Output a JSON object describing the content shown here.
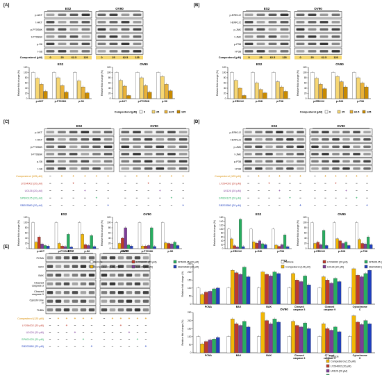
{
  "colors": {
    "vehicle": "#ffffff",
    "compound": "#f2b705",
    "ly": "#c0392b",
    "u0": "#7d3c98",
    "sp": "#27ae60",
    "sb": "#1f3fbf",
    "gray": "#888888",
    "ctrl_lbl": "#d98c00"
  },
  "panelA": {
    "letter": "[A]",
    "cells": [
      "ES2",
      "OV90"
    ],
    "bands": [
      "p-AKT",
      "t-AKT",
      "p-P70S6K",
      "t-P70S6K",
      "p-S6",
      "t-S6"
    ],
    "axis_caption": "Compesterol (μM)",
    "doses": [
      "0",
      "25",
      "62.5",
      "125"
    ],
    "ylabel": "Relative fold change (%)",
    "chart_titles": [
      "ES2",
      "OV90"
    ],
    "groups": [
      "p-AKT",
      "p-P70S6K",
      "p-S6"
    ],
    "dose_legend_caption": "Compesterol (μM)"
  },
  "panelB": {
    "letter": "[B]",
    "cells": [
      "ES2",
      "OV90"
    ],
    "bands": [
      "p-ERK1/2",
      "t-ERK1/2",
      "p-JNK",
      "t-JNK",
      "p-P38",
      "t-P38"
    ],
    "axis_caption": "Compesterol (μM)",
    "doses": [
      "0",
      "25",
      "62.5",
      "125"
    ],
    "ylabel": "Relative fold change (%)",
    "chart_titles": [
      "ES2",
      "OV90"
    ],
    "groups": [
      "p-ERK1/2",
      "p-JNK",
      "p-P38"
    ],
    "dose_legend_caption": "Compesterol (μM)"
  },
  "panelC": {
    "letter": "[C]",
    "cells": [
      "ES2",
      "OV90"
    ],
    "bands": [
      "p-AKT",
      "t-AKT",
      "p-P70S6K",
      "t-P70S6K",
      "p-S6",
      "t-S6"
    ],
    "treatments": [
      "Compesterol (125 μM)",
      "LY294002 (20 μM)",
      "U0126 (20 μM)",
      "SP600125 (20 μM)",
      "SB203580 (20 μM)"
    ],
    "ylabel": "Relative fold change (%)",
    "chart_titles": [
      "ES2",
      "OV90"
    ],
    "groups": [
      "p-AKT",
      "p-P70S6K",
      "p-S6"
    ],
    "legend": [
      "Vehicle",
      "LY294002 (20 μM)",
      "SP600125 (20 μM)",
      "Compesterol (125 μM)",
      "U0126 (20 μM)",
      "SB203580 (20 μM)"
    ]
  },
  "panelD": {
    "letter": "[D]",
    "cells": [
      "ES2",
      "OV90"
    ],
    "bands": [
      "p-ERK1/2",
      "t-ERK1/2",
      "p-JNK",
      "t-JNK",
      "p-P38",
      "t-P38"
    ],
    "treatments": [
      "Compesterol (125 μM)",
      "LY294002 (20 μM)",
      "U0126 (20 μM)",
      "SP600125 (20 μM)",
      "SB203580 (20 μM)"
    ],
    "ylabel": "Relative fold change (%)",
    "chart_titles": [
      "ES2",
      "OV90"
    ],
    "groups": [
      "p-ERK1/2",
      "p-JNK",
      "p-P38"
    ],
    "legend": [
      "Vehicle",
      "LY294002 (20 μM)",
      "SP600125 (20 μM)",
      "Compesterol (125 μM)",
      "U0126 (20 μM)",
      "SB203580 (20 μM)"
    ]
  },
  "panelE": {
    "letter": "[E]",
    "cells": [
      "ES2",
      "OV90"
    ],
    "bands": [
      "PCNA",
      "BAX",
      "BAK",
      "Cleaved caspase 3",
      "Cleaved caspase 9",
      "Cytochrome C",
      "TUBA"
    ],
    "treatments": [
      "Compesterol (125 μM)",
      "LY294002 (20 μM)",
      "U0126 (20 μM)",
      "SP600125 (20 μM)",
      "SB203580 (20 μM)"
    ],
    "ylabel": "Relative fold change (%)",
    "chart_titles": [
      "ES2",
      "OV90"
    ],
    "groups": [
      "PCNA",
      "BAX",
      "BAK",
      "Cleaved caspase 3",
      "Cleaved caspase 9",
      "Cytochrome C"
    ],
    "legend": [
      "Vehicle",
      "Compesterol (125 μM)",
      "LY294002 (20 μM)",
      "U0126 (20 μM)",
      "SP600125 (20 μM)",
      "SB203580 (20 μM)"
    ]
  },
  "symbols": {
    "plus": "+",
    "minus": "−"
  },
  "chart_data": [
    {
      "type": "bar",
      "title": "ES2",
      "ylabel": "Relative fold change (%)",
      "ylim": [
        0,
        120
      ],
      "yticks": [
        0,
        20,
        40,
        60,
        80,
        100,
        120
      ],
      "categories": [
        "p-AKT",
        "p-P70S6K",
        "p-S6"
      ],
      "series": [
        {
          "name": "0",
          "values": [
            100,
            100,
            100
          ]
        },
        {
          "name": "25",
          "values": [
            78,
            80,
            68
          ]
        },
        {
          "name": "62.5",
          "values": [
            55,
            50,
            45
          ]
        },
        {
          "name": "125",
          "values": [
            28,
            25,
            22
          ]
        }
      ]
    },
    {
      "type": "bar",
      "title": "OV90",
      "ylabel": "Relative fold change (%)",
      "ylim": [
        0,
        120
      ],
      "yticks": [
        0,
        20,
        40,
        60,
        80,
        100,
        120
      ],
      "categories": [
        "p-AKT",
        "p-P70S6K",
        "p-S6"
      ],
      "series": [
        {
          "name": "0",
          "values": [
            100,
            100,
            100
          ]
        },
        {
          "name": "25",
          "values": [
            70,
            80,
            85
          ]
        },
        {
          "name": "62.5",
          "values": [
            48,
            50,
            55
          ]
        },
        {
          "name": "125",
          "values": [
            12,
            25,
            30
          ]
        }
      ]
    },
    {
      "type": "bar",
      "title": "ES2",
      "ylabel": "Relative fold change (%)",
      "ylim": [
        0,
        120
      ],
      "yticks": [
        0,
        20,
        40,
        60,
        80,
        100,
        120
      ],
      "categories": [
        "p-ERK1/2",
        "p-JNK",
        "p-P38"
      ],
      "series": [
        {
          "name": "0",
          "values": [
            100,
            100,
            100
          ]
        },
        {
          "name": "25",
          "values": [
            70,
            60,
            65
          ]
        },
        {
          "name": "62.5",
          "values": [
            40,
            35,
            45
          ]
        },
        {
          "name": "125",
          "values": [
            12,
            22,
            28
          ]
        }
      ]
    },
    {
      "type": "bar",
      "title": "OV90",
      "ylabel": "Relative fold change (%)",
      "ylim": [
        0,
        120
      ],
      "yticks": [
        0,
        20,
        40,
        60,
        80,
        100,
        120
      ],
      "categories": [
        "p-ERK1/2",
        "p-JNK",
        "p-P38"
      ],
      "series": [
        {
          "name": "0",
          "values": [
            100,
            100,
            100
          ]
        },
        {
          "name": "25",
          "values": [
            78,
            85,
            80
          ]
        },
        {
          "name": "62.5",
          "values": [
            55,
            65,
            60
          ]
        },
        {
          "name": "125",
          "values": [
            38,
            45,
            45
          ]
        }
      ]
    },
    {
      "type": "bar",
      "title": "ES2",
      "ylabel": "Relative fold change (%)",
      "ylim": [
        0,
        120
      ],
      "yticks": [
        0,
        20,
        40,
        60,
        80,
        100,
        120
      ],
      "categories": [
        "p-AKT",
        "p-P70S6K",
        "p-S6"
      ],
      "series": [
        {
          "name": "Vehicle",
          "values": [
            100,
            100,
            100
          ]
        },
        {
          "name": "Compesterol (125 μM)",
          "values": [
            25,
            20,
            55
          ]
        },
        {
          "name": "LY294002 (20 μM)",
          "values": [
            45,
            10,
            15
          ]
        },
        {
          "name": "U0126 (20 μM)",
          "values": [
            18,
            8,
            12
          ]
        },
        {
          "name": "SP600125 (20 μM)",
          "values": [
            12,
            55,
            50
          ]
        },
        {
          "name": "SB203580 (20 μM)",
          "values": [
            10,
            6,
            8
          ]
        }
      ]
    },
    {
      "type": "bar",
      "title": "OV90",
      "ylabel": "Relative fold change (%)",
      "ylim": [
        0,
        120
      ],
      "yticks": [
        0,
        20,
        40,
        60,
        80,
        100,
        120
      ],
      "categories": [
        "p-AKT",
        "p-P70S6K",
        "p-S6"
      ],
      "series": [
        {
          "name": "Vehicle",
          "values": [
            100,
            100,
            100
          ]
        },
        {
          "name": "Compesterol (125 μM)",
          "values": [
            20,
            10,
            22
          ]
        },
        {
          "name": "LY294002 (20 μM)",
          "values": [
            40,
            10,
            20
          ]
        },
        {
          "name": "U0126 (20 μM)",
          "values": [
            80,
            12,
            18
          ]
        },
        {
          "name": "SP600125 (20 μM)",
          "values": [
            14,
            80,
            25
          ]
        },
        {
          "name": "SB203580 (20 μM)",
          "values": [
            10,
            8,
            12
          ]
        }
      ]
    },
    {
      "type": "bar",
      "title": "ES2",
      "ylabel": "Relative fold change (%)",
      "ylim": [
        0,
        160
      ],
      "yticks": [
        0,
        20,
        40,
        60,
        80,
        100,
        120,
        140,
        160
      ],
      "categories": [
        "p-ERK1/2",
        "p-JNK",
        "p-P38"
      ],
      "series": [
        {
          "name": "Vehicle",
          "values": [
            100,
            100,
            100
          ]
        },
        {
          "name": "Compesterol (125 μM)",
          "values": [
            50,
            35,
            18
          ]
        },
        {
          "name": "LY294002 (20 μM)",
          "values": [
            15,
            28,
            12
          ]
        },
        {
          "name": "U0126 (20 μM)",
          "values": [
            8,
            40,
            20
          ]
        },
        {
          "name": "SP600125 (20 μM)",
          "values": [
            150,
            25,
            70
          ]
        },
        {
          "name": "SB203580 (20 μM)",
          "values": [
            10,
            20,
            10
          ]
        }
      ]
    },
    {
      "type": "bar",
      "title": "OV90",
      "ylabel": "Relative fold change (%)",
      "ylim": [
        0,
        120
      ],
      "yticks": [
        0,
        20,
        40,
        60,
        80,
        100,
        120
      ],
      "categories": [
        "p-ERK1/2",
        "p-JNK",
        "p-P38"
      ],
      "series": [
        {
          "name": "Vehicle",
          "values": [
            100,
            100,
            100
          ]
        },
        {
          "name": "Compesterol (125 μM)",
          "values": [
            20,
            38,
            35
          ]
        },
        {
          "name": "LY294002 (20 μM)",
          "values": [
            25,
            30,
            20
          ]
        },
        {
          "name": "U0126 (20 μM)",
          "values": [
            15,
            20,
            18
          ]
        },
        {
          "name": "SP600125 (20 μM)",
          "values": [
            70,
            25,
            45
          ]
        },
        {
          "name": "SB203580 (20 μM)",
          "values": [
            12,
            12,
            15
          ]
        }
      ]
    },
    {
      "type": "bar",
      "title": "ES2",
      "ylabel": "Relative fold change (%)",
      "ylim": [
        0,
        250
      ],
      "yticks": [
        0,
        50,
        100,
        150,
        200,
        250
      ],
      "categories": [
        "PCNA",
        "BAX",
        "BAK",
        "Cleaved caspase 3",
        "Cleaved caspase 9",
        "Cytochrome C"
      ],
      "series": [
        {
          "name": "Vehicle",
          "values": [
            100,
            100,
            100,
            100,
            100,
            100
          ]
        },
        {
          "name": "Compesterol (125 μM)",
          "values": [
            60,
            210,
            200,
            190,
            170,
            220
          ]
        },
        {
          "name": "LY294002 (20 μM)",
          "values": [
            75,
            195,
            185,
            150,
            150,
            180
          ]
        },
        {
          "name": "U0126 (20 μM)",
          "values": [
            80,
            185,
            175,
            140,
            130,
            170
          ]
        },
        {
          "name": "SP600125 (20 μM)",
          "values": [
            95,
            230,
            200,
            175,
            160,
            190
          ]
        },
        {
          "name": "SB203580 (20 μM)",
          "values": [
            100,
            170,
            190,
            120,
            140,
            210
          ]
        }
      ]
    },
    {
      "type": "bar",
      "title": "OV90",
      "ylabel": "Relative fold change (%)",
      "ylim": [
        0,
        250
      ],
      "yticks": [
        0,
        50,
        100,
        150,
        200,
        250
      ],
      "categories": [
        "PCNA",
        "BAX",
        "BAK",
        "Cleaved caspase 3",
        "Cleaved caspase 9",
        "Cytochrome C"
      ],
      "series": [
        {
          "name": "Vehicle",
          "values": [
            100,
            100,
            100,
            100,
            100,
            100
          ]
        },
        {
          "name": "Compesterol (125 μM)",
          "values": [
            55,
            210,
            250,
            195,
            180,
            230
          ]
        },
        {
          "name": "LY294002 (20 μM)",
          "values": [
            70,
            180,
            200,
            170,
            150,
            190
          ]
        },
        {
          "name": "U0126 (20 μM)",
          "values": [
            80,
            170,
            180,
            160,
            140,
            175
          ]
        },
        {
          "name": "SP600125 (20 μM)",
          "values": [
            85,
            195,
            210,
            185,
            160,
            200
          ]
        },
        {
          "name": "SB203580 (20 μM)",
          "values": [
            95,
            160,
            190,
            150,
            130,
            180
          ]
        }
      ]
    }
  ]
}
